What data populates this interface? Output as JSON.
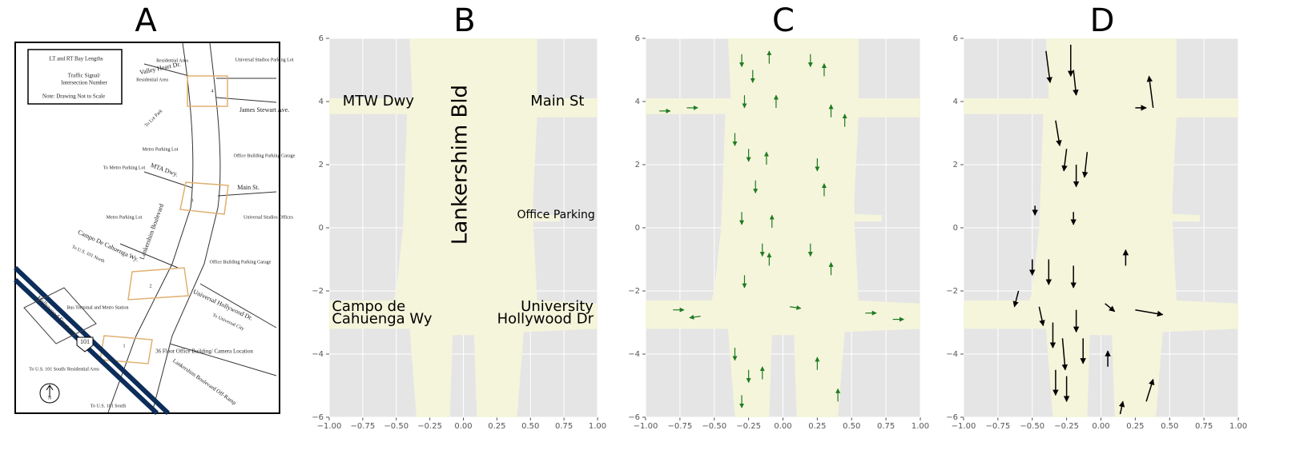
{
  "chart_data": [
    {
      "type": "map",
      "title": "A",
      "legend": [
        "LT and RT Bay Lengths",
        "Traffic Signal/",
        "Intersection Number",
        "Note: Drawing Not to Scale"
      ],
      "labels": [
        "Residential Area",
        "Valley Heart Dr.",
        "Residential Area",
        "Universal Studios Parking Lot",
        "James Stewart Ave.",
        "To Lot Park",
        "Metro Parking Lot",
        "Office Building Parking Garage",
        "To Metro Parking Lot",
        "MTA Dwy.",
        "Main St.",
        "Universal Studios Offices",
        "Metro Parking Lot",
        "Lankershim Boulevard",
        "Campo De Cahuenga Wy.",
        "To U.S. 101 North",
        "Office Building Parking Garage",
        "Universal Hollywood Dr.",
        "To Universal City",
        "Hollywood Freeway",
        "Bus Terminal and Metro Station",
        "101",
        "To U.S. 101 South/ Residential Area",
        "36 Floor Office Building/ Camera Location",
        "Lankershim Boulevard Off-Ramp",
        "To U.S. 101 South",
        "N"
      ],
      "intersections": [
        "4",
        "3",
        "2",
        "1"
      ]
    },
    {
      "type": "road",
      "title": "B",
      "xlim": [
        -1,
        1
      ],
      "ylim": [
        -6,
        6
      ],
      "xticks": [
        {
          "value": -1,
          "label": "−1.00"
        },
        {
          "value": -0.75,
          "label": "−0.75"
        },
        {
          "value": -0.5,
          "label": "−0.50"
        },
        {
          "value": -0.25,
          "label": "−0.25"
        },
        {
          "value": 0,
          "label": "0.00"
        },
        {
          "value": 0.25,
          "label": "0.25"
        },
        {
          "value": 0.5,
          "label": "0.50"
        },
        {
          "value": 0.75,
          "label": "0.75"
        },
        {
          "value": 1,
          "label": "1.00"
        }
      ],
      "yticks": [
        {
          "value": -6,
          "label": "−6"
        },
        {
          "value": -4,
          "label": "−4"
        },
        {
          "value": -2,
          "label": "−2"
        },
        0,
        2,
        4,
        6
      ],
      "grid": true,
      "annotations": [
        "MTW Dwy",
        "Main St",
        "Lankershim Bld",
        "Office Parking",
        "Campo de",
        "Cahuenga Wy",
        "University",
        "Hollywood Dr"
      ]
    },
    {
      "type": "quiver",
      "title": "C",
      "color": "#1f7a1f",
      "xlim": [
        -1,
        1
      ],
      "ylim": [
        -6,
        6
      ],
      "xticks": [
        {
          "value": -1,
          "label": "−1.00"
        },
        {
          "value": -0.75,
          "label": "−0.75"
        },
        {
          "value": -0.5,
          "label": "−0.50"
        },
        {
          "value": -0.25,
          "label": "−0.25"
        },
        {
          "value": 0,
          "label": "0.00"
        },
        {
          "value": 0.25,
          "label": "0.25"
        },
        {
          "value": 0.5,
          "label": "0.50"
        },
        {
          "value": 0.75,
          "label": "0.75"
        },
        {
          "value": 1,
          "label": "1.00"
        }
      ],
      "yticks": [
        {
          "value": -6,
          "label": "−6"
        },
        {
          "value": -4,
          "label": "−4"
        },
        {
          "value": -2,
          "label": "−2"
        },
        0,
        2,
        4,
        6
      ],
      "grid": true,
      "x": [
        -0.3,
        -0.22,
        -0.28,
        -0.35,
        -0.25,
        -0.2,
        -0.3,
        -0.15,
        -0.28,
        -0.35,
        -0.25,
        -0.3,
        -0.1,
        -0.05,
        -0.12,
        -0.08,
        -0.1,
        -0.15,
        0.2,
        0.3,
        0.35,
        0.45,
        0.25,
        0.3,
        0.2,
        0.35,
        0.25,
        0.4,
        -0.9,
        -0.7,
        0.6,
        0.8,
        -0.8,
        -0.6,
        0.05
      ],
      "y": [
        5.5,
        5.0,
        4.2,
        3.0,
        2.5,
        1.5,
        0.5,
        -0.5,
        -1.5,
        -3.8,
        -4.5,
        -5.3,
        5.2,
        3.8,
        2.0,
        0.0,
        -1.2,
        -4.8,
        5.5,
        4.8,
        3.5,
        3.2,
        2.2,
        1.0,
        -0.5,
        -1.5,
        -4.5,
        -5.5,
        3.7,
        3.8,
        -2.7,
        -2.9,
        -2.6,
        -2.8,
        -2.5
      ],
      "u": [
        0,
        0,
        0,
        0,
        0,
        0,
        0,
        0,
        0,
        0,
        0,
        0,
        0,
        0,
        0,
        0,
        0,
        0,
        0,
        0,
        0,
        0,
        0,
        0,
        0,
        0,
        0,
        0,
        0.08,
        0.08,
        0.08,
        0.08,
        0.08,
        -0.08,
        0.08
      ],
      "v": [
        -0.4,
        -0.4,
        -0.4,
        -0.4,
        -0.4,
        -0.4,
        -0.4,
        -0.4,
        -0.4,
        -0.4,
        -0.4,
        -0.4,
        0.4,
        0.4,
        0.4,
        0.4,
        0.4,
        0.4,
        -0.4,
        0.4,
        0.4,
        0.4,
        -0.4,
        0.4,
        -0.4,
        0.4,
        0.4,
        0.4,
        0,
        0,
        0,
        0,
        0,
        -0.05,
        -0.05
      ]
    },
    {
      "type": "quiver",
      "title": "D",
      "color": "#000000",
      "xlim": [
        -1,
        1
      ],
      "ylim": [
        -6,
        6
      ],
      "xticks": [
        {
          "value": -1,
          "label": "−1.00"
        },
        {
          "value": -0.75,
          "label": "−0.75"
        },
        {
          "value": -0.5,
          "label": "−0.50"
        },
        {
          "value": -0.25,
          "label": "−0.25"
        },
        {
          "value": 0,
          "label": "0.00"
        },
        {
          "value": 0.25,
          "label": "0.25"
        },
        {
          "value": 0.5,
          "label": "0.50"
        },
        {
          "value": 0.75,
          "label": "0.75"
        },
        {
          "value": 1,
          "label": "1.00"
        }
      ],
      "yticks": [
        {
          "value": -6,
          "label": "−6"
        },
        {
          "value": -4,
          "label": "−4"
        },
        {
          "value": -2,
          "label": "−2"
        },
        0,
        2,
        4,
        6
      ],
      "grid": true,
      "x": [
        -0.4,
        -0.22,
        -0.2,
        0.38,
        0.25,
        -0.33,
        -0.25,
        -0.1,
        -0.18,
        -0.48,
        -0.2,
        -0.5,
        -0.38,
        -0.2,
        -0.6,
        -0.45,
        -0.35,
        -0.18,
        -0.28,
        -0.13,
        -0.33,
        -0.25,
        0.18,
        0.03,
        0.25,
        0.05,
        0.33,
        0.14
      ],
      "y": [
        5.6,
        5.8,
        5.0,
        3.8,
        3.8,
        3.4,
        2.5,
        2.4,
        2.0,
        0.7,
        0.5,
        -1.0,
        -1.0,
        -1.2,
        -2.0,
        -2.5,
        -3.0,
        -2.6,
        -3.5,
        -3.5,
        -4.5,
        -4.7,
        -1.2,
        -2.4,
        -2.6,
        -4.4,
        -5.5,
        -5.9
      ],
      "u": [
        0.03,
        0,
        0.02,
        -0.03,
        0.08,
        0.03,
        -0.02,
        -0.02,
        0,
        0,
        0,
        0,
        0,
        0,
        -0.03,
        0.03,
        0,
        0,
        0.02,
        0,
        0,
        0,
        0,
        0.07,
        0.2,
        0,
        0.05,
        0.02
      ],
      "v": [
        -1.0,
        -1.0,
        -0.8,
        1.0,
        0,
        -0.8,
        -0.7,
        -0.8,
        -0.7,
        -0.3,
        -0.4,
        -0.5,
        -0.8,
        -0.7,
        -0.5,
        -0.6,
        -0.8,
        -0.7,
        -1.0,
        -0.8,
        -0.8,
        -0.8,
        0.5,
        -0.25,
        -0.15,
        0.5,
        0.7,
        0.4
      ]
    }
  ]
}
